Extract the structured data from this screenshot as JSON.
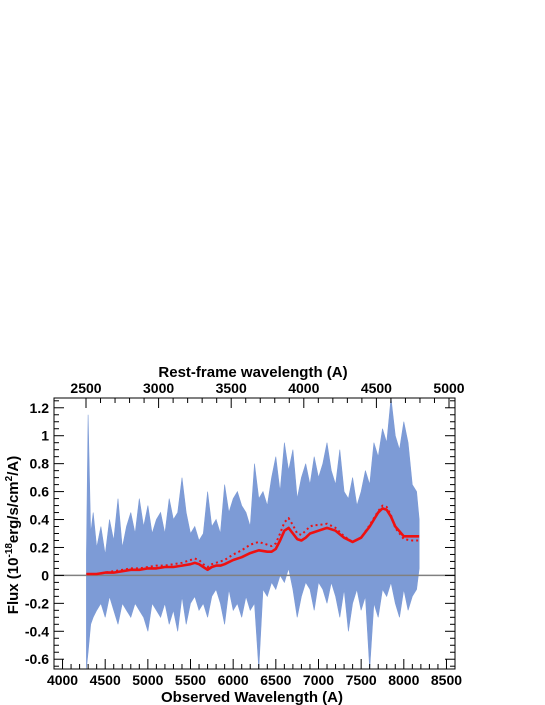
{
  "chart_data": {
    "type": "line",
    "xlabel": "Observed Wavelength (A)",
    "x2label": "Rest-frame wavelength (A)",
    "ylabel_main": "Flux (10",
    "ylabel_exp1": "-18",
    "ylabel_mid": "erg/s/cm",
    "ylabel_exp2": "2",
    "ylabel_end": "/A)",
    "xlim": [
      3900,
      8600
    ],
    "ylim": [
      -0.67,
      1.27
    ],
    "x2lim": [
      2500,
      5000
    ],
    "xticks": [
      4000,
      4500,
      5000,
      5500,
      6000,
      6500,
      7000,
      7500,
      8000,
      8500
    ],
    "xtick_labels": [
      "4000",
      "4500",
      "5000",
      "5500",
      "6000",
      "6500",
      "7000",
      "7500",
      "8000",
      "8500"
    ],
    "x2ticks": [
      2500,
      3000,
      3500,
      4000,
      4500,
      5000
    ],
    "x2tick_labels": [
      "2500",
      "3000",
      "3500",
      "4000",
      "4500",
      "5000"
    ],
    "yticks": [
      -0.6,
      -0.4,
      -0.2,
      0,
      0.2,
      0.4,
      0.6,
      0.8,
      1,
      1.2
    ],
    "ytick_labels": [
      "-0.6",
      "-0.4",
      "-0.2",
      "0",
      "0.2",
      "0.4",
      "0.6",
      "0.8",
      "1",
      "1.2"
    ],
    "zero_line": 0,
    "colors": {
      "band": "#7d9bd6",
      "model": "#ee1111",
      "zero": "#808080"
    },
    "spectrum_band": {
      "x": [
        4280,
        4300,
        4330,
        4360,
        4400,
        4450,
        4500,
        4550,
        4600,
        4650,
        4700,
        4750,
        4800,
        4850,
        4900,
        4950,
        5000,
        5050,
        5100,
        5150,
        5200,
        5250,
        5300,
        5350,
        5400,
        5450,
        5500,
        5550,
        5600,
        5650,
        5700,
        5750,
        5800,
        5850,
        5900,
        5950,
        6000,
        6050,
        6100,
        6150,
        6200,
        6250,
        6300,
        6350,
        6400,
        6450,
        6500,
        6550,
        6600,
        6650,
        6700,
        6750,
        6800,
        6850,
        6900,
        6950,
        7000,
        7050,
        7100,
        7150,
        7200,
        7250,
        7300,
        7350,
        7400,
        7450,
        7500,
        7550,
        7600,
        7650,
        7700,
        7750,
        7800,
        7850,
        7900,
        7950,
        8000,
        8050,
        8100,
        8150,
        8180
      ],
      "upper": [
        0.15,
        1.15,
        0.3,
        0.45,
        0.2,
        0.35,
        0.15,
        0.4,
        0.25,
        0.55,
        0.2,
        0.35,
        0.45,
        0.3,
        0.55,
        0.35,
        0.5,
        0.3,
        0.4,
        0.45,
        0.3,
        0.55,
        0.4,
        0.45,
        0.7,
        0.45,
        0.3,
        0.35,
        0.25,
        0.3,
        0.6,
        0.35,
        0.4,
        0.3,
        0.65,
        0.45,
        0.55,
        0.6,
        0.5,
        0.45,
        0.35,
        0.8,
        0.55,
        0.6,
        0.5,
        0.7,
        0.85,
        0.6,
        0.95,
        0.75,
        0.9,
        0.55,
        0.7,
        0.8,
        0.65,
        0.85,
        0.7,
        0.8,
        0.95,
        0.75,
        0.65,
        0.9,
        0.6,
        0.55,
        0.7,
        0.5,
        0.6,
        0.75,
        0.65,
        0.95,
        0.85,
        1.05,
        0.95,
        1.27,
        1.0,
        0.9,
        1.1,
        0.95,
        0.65,
        0.6,
        0.4
      ],
      "lower": [
        -0.67,
        -0.55,
        -0.35,
        -0.3,
        -0.25,
        -0.2,
        -0.3,
        -0.15,
        -0.25,
        -0.35,
        -0.2,
        -0.25,
        -0.3,
        -0.2,
        -0.25,
        -0.3,
        -0.4,
        -0.2,
        -0.25,
        -0.3,
        -0.2,
        -0.35,
        -0.25,
        -0.4,
        -0.15,
        -0.35,
        -0.2,
        -0.15,
        -0.25,
        -0.2,
        -0.3,
        -0.15,
        -0.1,
        -0.2,
        -0.35,
        -0.1,
        -0.25,
        -0.2,
        -0.3,
        -0.15,
        -0.25,
        -0.2,
        -0.67,
        -0.1,
        -0.15,
        -0.05,
        -0.1,
        0.0,
        -0.05,
        0.05,
        -0.1,
        -0.3,
        -0.15,
        -0.05,
        -0.1,
        -0.25,
        -0.05,
        -0.1,
        -0.2,
        -0.05,
        -0.15,
        -0.3,
        -0.1,
        -0.4,
        -0.2,
        -0.1,
        -0.25,
        -0.15,
        -0.67,
        -0.2,
        -0.3,
        -0.1,
        -0.15,
        -0.05,
        -0.2,
        -0.3,
        -0.1,
        -0.25,
        -0.15,
        -0.1,
        0.05
      ]
    },
    "series": [
      {
        "style": "solid",
        "x": [
          4280,
          4400,
          4500,
          4600,
          4700,
          4800,
          4900,
          5000,
          5100,
          5200,
          5300,
          5400,
          5500,
          5550,
          5600,
          5650,
          5700,
          5750,
          5800,
          5850,
          5900,
          6000,
          6100,
          6200,
          6300,
          6400,
          6450,
          6500,
          6550,
          6600,
          6650,
          6700,
          6750,
          6800,
          6850,
          6900,
          6950,
          7000,
          7100,
          7200,
          7300,
          7400,
          7500,
          7600,
          7700,
          7750,
          7800,
          7850,
          7900,
          8000,
          8100,
          8180
        ],
        "y": [
          0.01,
          0.01,
          0.02,
          0.02,
          0.03,
          0.04,
          0.04,
          0.05,
          0.05,
          0.06,
          0.06,
          0.07,
          0.08,
          0.09,
          0.08,
          0.06,
          0.04,
          0.06,
          0.07,
          0.07,
          0.08,
          0.11,
          0.13,
          0.16,
          0.18,
          0.17,
          0.17,
          0.19,
          0.25,
          0.32,
          0.34,
          0.3,
          0.26,
          0.25,
          0.27,
          0.3,
          0.31,
          0.32,
          0.34,
          0.32,
          0.27,
          0.24,
          0.27,
          0.35,
          0.45,
          0.48,
          0.47,
          0.42,
          0.35,
          0.28,
          0.28,
          0.28
        ]
      },
      {
        "style": "dotted",
        "x": [
          4280,
          4400,
          4500,
          4600,
          4700,
          4800,
          4900,
          5000,
          5100,
          5200,
          5300,
          5400,
          5500,
          5550,
          5600,
          5650,
          5700,
          5750,
          5800,
          5850,
          5900,
          6000,
          6100,
          6200,
          6300,
          6400,
          6450,
          6500,
          6550,
          6600,
          6650,
          6700,
          6750,
          6800,
          6850,
          6900,
          6950,
          7000,
          7100,
          7200,
          7300,
          7400,
          7500,
          7600,
          7700,
          7750,
          7800,
          7850,
          7900,
          8000,
          8100,
          8180
        ],
        "y": [
          0.01,
          0.01,
          0.02,
          0.03,
          0.04,
          0.05,
          0.05,
          0.06,
          0.07,
          0.07,
          0.08,
          0.09,
          0.11,
          0.12,
          0.11,
          0.08,
          0.06,
          0.08,
          0.09,
          0.1,
          0.11,
          0.15,
          0.18,
          0.22,
          0.24,
          0.22,
          0.21,
          0.23,
          0.3,
          0.38,
          0.41,
          0.36,
          0.3,
          0.29,
          0.32,
          0.35,
          0.36,
          0.36,
          0.37,
          0.34,
          0.28,
          0.24,
          0.27,
          0.36,
          0.46,
          0.5,
          0.49,
          0.43,
          0.34,
          0.26,
          0.25,
          0.25
        ]
      }
    ]
  }
}
